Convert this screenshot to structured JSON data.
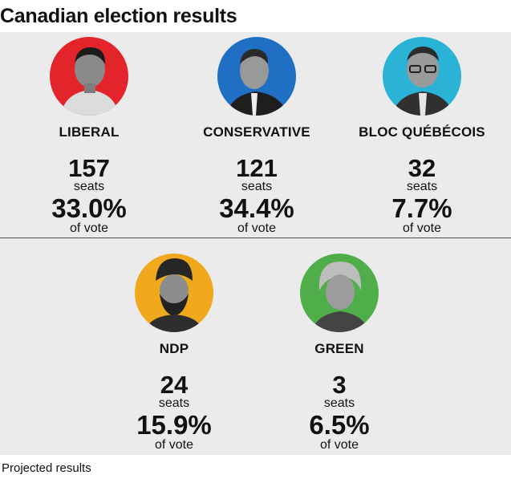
{
  "title": "Canadian election results",
  "footer": "Projected results",
  "parties": [
    {
      "name": "LIBERAL",
      "seats": "157",
      "seats_label": "seats",
      "vote": "33.0%",
      "vote_label": "of vote",
      "color": "#e3242b"
    },
    {
      "name": "CONSERVATIVE",
      "seats": "121",
      "seats_label": "seats",
      "vote": "34.4%",
      "vote_label": "of vote",
      "color": "#1f6fc5"
    },
    {
      "name": "BLOC QUÉBÉCOIS",
      "seats": "32",
      "seats_label": "seats",
      "vote": "7.7%",
      "vote_label": "of vote",
      "color": "#2ab3d6"
    },
    {
      "name": "NDP",
      "seats": "24",
      "seats_label": "seats",
      "vote": "15.9%",
      "vote_label": "of vote",
      "color": "#f0a81c"
    },
    {
      "name": "GREEN",
      "seats": "3",
      "seats_label": "seats",
      "vote": "6.5%",
      "vote_label": "of vote",
      "color": "#4fae4a"
    }
  ]
}
